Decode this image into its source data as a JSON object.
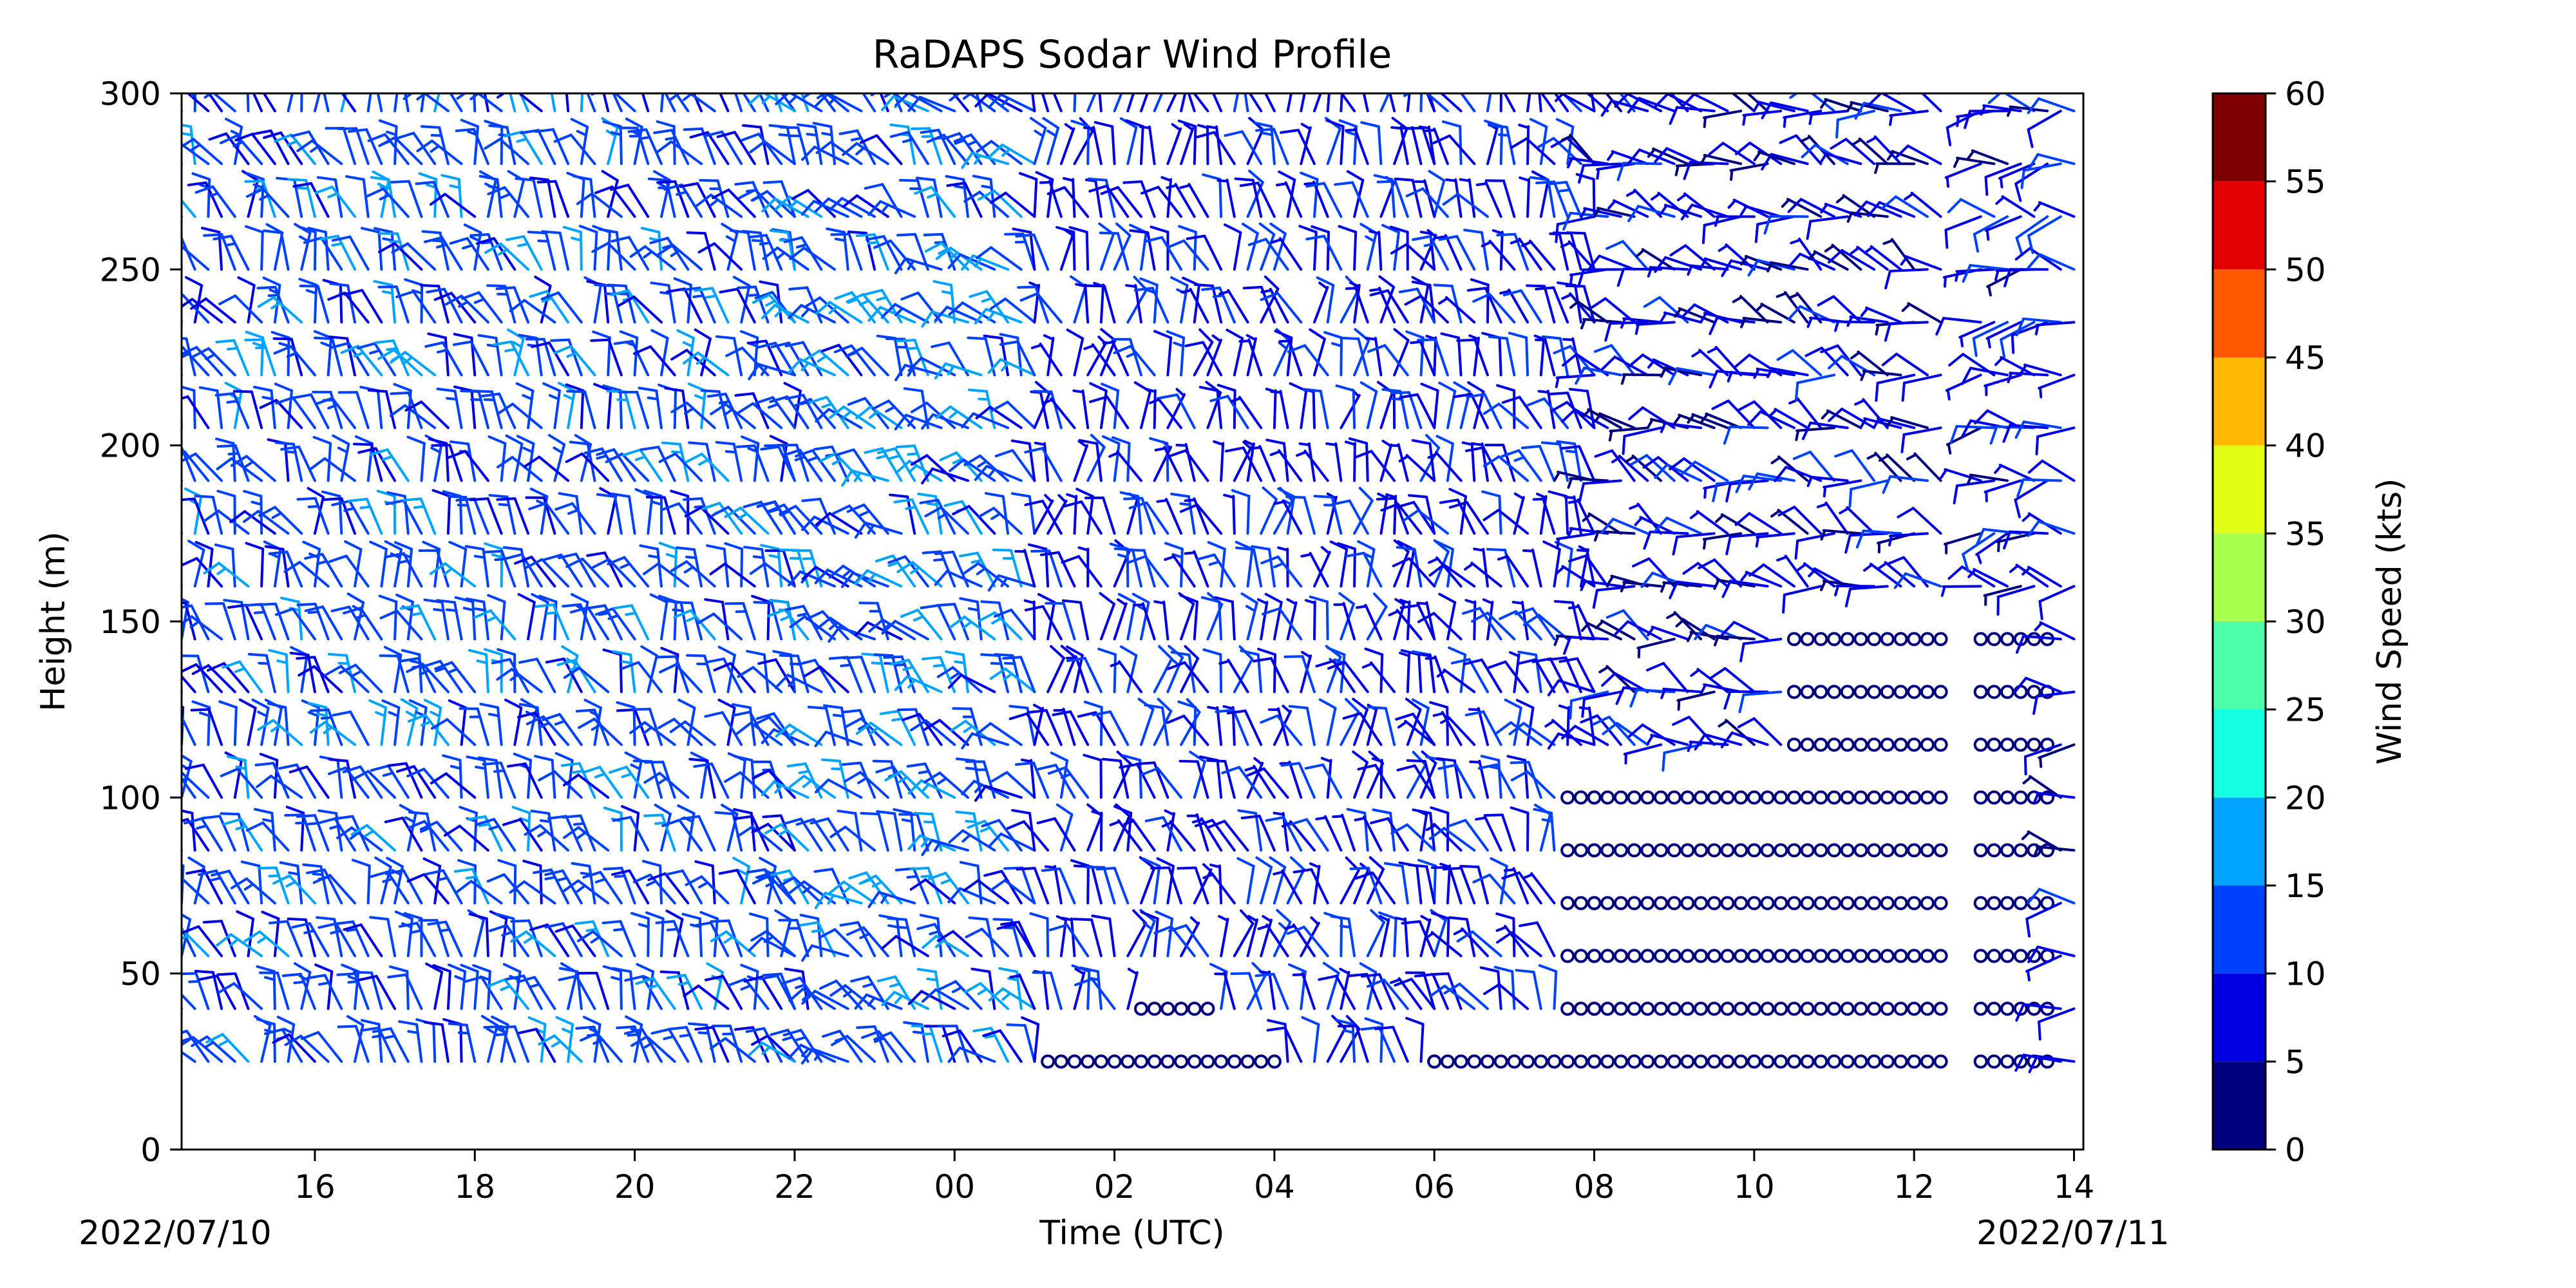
{
  "chart_data": {
    "type": "barbs",
    "title": "RaDAPS Sodar Wind Profile",
    "xlabel": "Time (UTC)",
    "ylabel": "Height (m)",
    "start_date_label": "2022/07/10",
    "end_date_label": "2022/07/11",
    "xlim": [
      "2022-07-10T14:20",
      "2022-07-11T14:07"
    ],
    "ylim": [
      0,
      300
    ],
    "x_tick_labels": [
      "16",
      "18",
      "20",
      "22",
      "00",
      "02",
      "04",
      "06",
      "08",
      "10",
      "12",
      "14"
    ],
    "y_ticks": [
      0,
      50,
      100,
      150,
      200,
      250,
      300
    ],
    "heights": [
      25,
      40,
      55,
      70,
      85,
      100,
      115,
      130,
      145,
      160,
      175,
      190,
      205,
      220,
      235,
      250,
      265,
      280,
      295
    ],
    "grid": false,
    "colorbar": {
      "label": "Wind Speed (kts)",
      "ticks": [
        0,
        5,
        10,
        15,
        20,
        25,
        30,
        35,
        40,
        45,
        50,
        55,
        60
      ],
      "colormap": "jet",
      "colors": [
        "#00007f",
        "#0000e3",
        "#0040ff",
        "#00a4ff",
        "#15ffe1",
        "#4dffa9",
        "#a9ff4d",
        "#e1ff15",
        "#ffb900",
        "#ff5900",
        "#e30000",
        "#7f0000"
      ]
    },
    "series": {
      "description": "Wind barbs: direction (deg, from) and speed (kts) per height, sampled by time window",
      "windows": [
        {
          "start": "2022-07-10T14:20",
          "end": "2022-07-10T22:00",
          "height_max": 295,
          "dir": 340,
          "speed": 12
        },
        {
          "start": "2022-07-10T22:00",
          "end": "2022-07-11T01:00",
          "height_max": 295,
          "dir": 320,
          "speed": 13
        },
        {
          "start": "2022-07-11T01:00",
          "end": "2022-07-11T06:00",
          "height_max": 295,
          "dir": 355,
          "speed": 9
        },
        {
          "start": "2022-07-11T06:00",
          "end": "2022-07-11T08:00",
          "height_max": 295,
          "dir": 340,
          "speed": 9
        },
        {
          "start": "2022-07-11T08:00",
          "end": "2022-07-11T12:20",
          "height_max": 295,
          "dir": 290,
          "speed": 7
        },
        {
          "start": "2022-07-11T12:50",
          "end": "2022-07-11T14:07",
          "height_max": 295,
          "dir": 270,
          "speed": 8
        }
      ],
      "calm_regions": [
        {
          "start": "2022-07-11T01:10",
          "end": "2022-07-11T04:00",
          "heights": [
            25
          ]
        },
        {
          "start": "2022-07-11T02:20",
          "end": "2022-07-11T03:10",
          "heights": [
            40
          ]
        },
        {
          "start": "2022-07-11T06:00",
          "end": "2022-07-11T07:40",
          "heights": [
            25
          ]
        },
        {
          "start": "2022-07-11T07:40",
          "end": "2022-07-11T12:20",
          "heights": [
            25,
            40,
            55,
            70,
            85,
            100
          ]
        },
        {
          "start": "2022-07-11T10:30",
          "end": "2022-07-11T12:20",
          "heights": [
            115,
            130,
            145
          ]
        },
        {
          "start": "2022-07-11T12:50",
          "end": "2022-07-11T13:40",
          "heights": [
            25,
            40,
            55,
            70,
            85,
            100,
            115,
            130,
            145
          ]
        }
      ]
    }
  }
}
